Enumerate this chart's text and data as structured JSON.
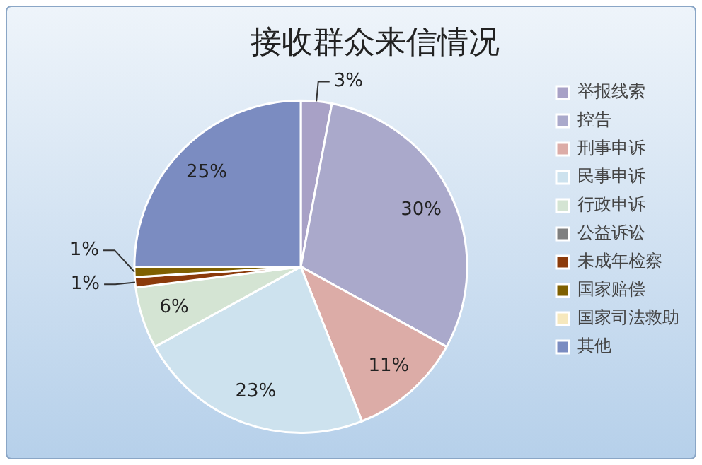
{
  "chart_data": {
    "type": "pie",
    "title": "接收群众来信情况",
    "categories": [
      "举报线索",
      "控告",
      "刑事申诉",
      "民事申诉",
      "行政申诉",
      "公益诉讼",
      "未成年检察",
      "国家赔偿",
      "国家司法救助",
      "其他"
    ],
    "values": [
      3,
      30,
      11,
      23,
      6,
      0,
      1,
      1,
      0,
      25
    ],
    "value_labels": [
      "3%",
      "30%",
      "11%",
      "23%",
      "6%",
      null,
      "1%",
      "1%",
      null,
      "25%"
    ],
    "colors": [
      "#a8a1c6",
      "#aaa9cb",
      "#dcaca7",
      "#cde2ee",
      "#d4e4d3",
      "#7f7f7f",
      "#8b3a0a",
      "#7f6000",
      "#f6e8bd",
      "#7b8cc1"
    ],
    "legend": "right"
  }
}
